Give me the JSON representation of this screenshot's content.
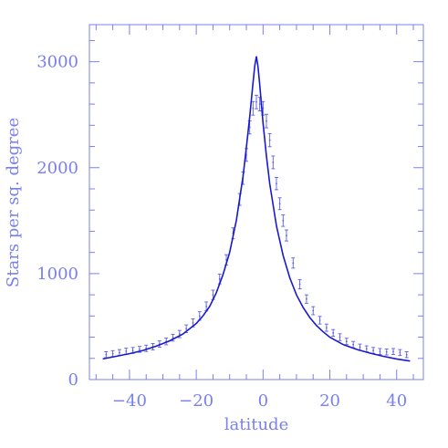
{
  "chart_data": {
    "type": "line",
    "title": "",
    "xlabel": "latitude",
    "ylabel": "Stars per sq. degree",
    "xlim": [
      -52,
      48
    ],
    "ylim": [
      0,
      3350
    ],
    "xticks": [
      -40,
      -20,
      0,
      20,
      40
    ],
    "yticks": [
      0,
      1000,
      2000,
      3000
    ],
    "grid": false,
    "colors": {
      "axis": "#7a7ff0",
      "curve": "#1a1acd",
      "points": "#5a5fe6"
    },
    "series": [
      {
        "kind": "model-line",
        "x": [
          -48,
          -44,
          -40,
          -36,
          -32,
          -28,
          -24,
          -20,
          -18,
          -16,
          -14,
          -12,
          -10,
          -8,
          -6,
          -5,
          -4,
          -3,
          -2.5,
          -2,
          -1.5,
          -1,
          0,
          1,
          2,
          4,
          6,
          8,
          10,
          12,
          14,
          16,
          18,
          20,
          24,
          28,
          32,
          36,
          40,
          44
        ],
        "y": [
          195,
          220,
          245,
          275,
          315,
          365,
          430,
          530,
          600,
          690,
          820,
          990,
          1200,
          1500,
          1920,
          2190,
          2480,
          2800,
          2960,
          3050,
          2950,
          2780,
          2420,
          2110,
          1850,
          1450,
          1170,
          960,
          800,
          680,
          585,
          510,
          450,
          400,
          330,
          285,
          250,
          220,
          195,
          175
        ]
      },
      {
        "kind": "data-points",
        "x": [
          -47,
          -45,
          -43,
          -41,
          -39,
          -37,
          -35,
          -33,
          -31,
          -29,
          -27,
          -25,
          -23,
          -21,
          -19,
          -17,
          -15,
          -13,
          -11,
          -9,
          -7,
          -6,
          -5,
          -4,
          -3,
          -2,
          -1,
          0,
          1,
          2,
          3,
          4,
          5,
          6,
          7,
          9,
          11,
          13,
          15,
          17,
          19,
          21,
          23,
          25,
          27,
          29,
          31,
          33,
          35,
          37,
          39,
          41,
          43
        ],
        "y": [
          235,
          245,
          255,
          268,
          275,
          285,
          295,
          310,
          335,
          360,
          395,
          430,
          480,
          535,
          600,
          690,
          800,
          950,
          1130,
          1380,
          1700,
          1900,
          2120,
          2380,
          2560,
          2620,
          2600,
          2560,
          2440,
          2260,
          2050,
          1850,
          1660,
          1500,
          1360,
          1100,
          900,
          760,
          650,
          560,
          490,
          440,
          400,
          360,
          330,
          305,
          290,
          275,
          265,
          260,
          265,
          255,
          235
        ],
        "err": [
          28,
          28,
          28,
          28,
          28,
          28,
          30,
          30,
          30,
          32,
          32,
          34,
          36,
          38,
          40,
          42,
          44,
          46,
          48,
          52,
          56,
          58,
          60,
          62,
          64,
          64,
          64,
          64,
          64,
          62,
          60,
          58,
          56,
          54,
          52,
          48,
          44,
          40,
          38,
          36,
          34,
          32,
          32,
          30,
          30,
          30,
          28,
          28,
          28,
          28,
          28,
          28,
          28
        ]
      }
    ]
  }
}
